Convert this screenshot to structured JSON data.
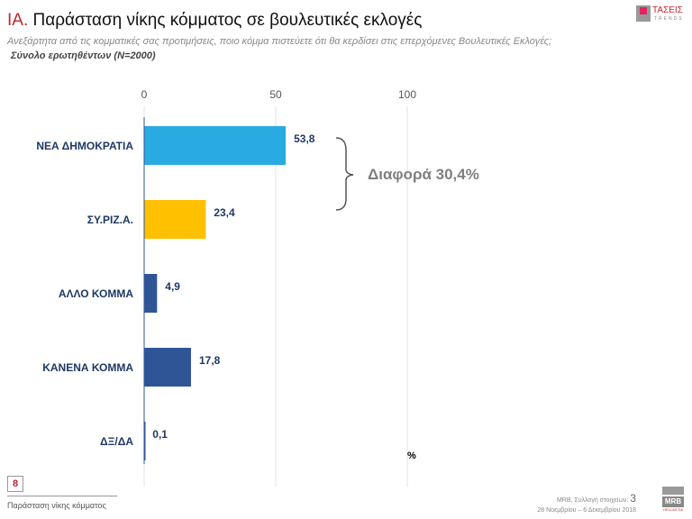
{
  "header": {
    "title_prefix": "ΙΑ.",
    "title": " Παράσταση νίκης κόμματος σε βουλευτικές εκλογές",
    "question": "Ανεξάρτητα από τις κομματικές σας προτιμήσεις, ποιο κόμμα πιστεύετε ότι θα κερδίσει στις επερχόμενες Βουλευτικές Εκλογές;",
    "sample": "Σύνολο ερωτηθέντων (N=2000)",
    "logo_text": "ΤΑΣΕΙΣ",
    "logo_sub": "TRENDS"
  },
  "chart_data": {
    "type": "bar",
    "orientation": "horizontal",
    "categories": [
      "ΝΕΑ ΔΗΜΟΚΡΑΤΙΑ",
      "ΣΥ.ΡΙΖ.Α.",
      "ΑΛΛΟ ΚΟΜΜΑ",
      "ΚΑΝΕΝΑ ΚΟΜΜΑ",
      "ΔΞ/ΔΑ"
    ],
    "values": [
      53.8,
      23.4,
      4.9,
      17.8,
      0.1
    ],
    "value_labels": [
      "53,8",
      "23,4",
      "4,9",
      "17,8",
      "0,1"
    ],
    "colors": [
      "#29abe2",
      "#ffc000",
      "#2f5597",
      "#2f5597",
      "#2f5597"
    ],
    "xlim": [
      0,
      100
    ],
    "xticks": [
      "0",
      "50",
      "100"
    ],
    "unit": "%",
    "annotation": "Διαφορά 30,4%",
    "grid": true
  },
  "footer": {
    "slide_badge": "8",
    "section": "Παράσταση νίκης κόμματος",
    "source": "MRB, Συλλογή στοιχείων:",
    "dates": "28 Νοεμβρίου – 6 Δεκεμβρίου 2018",
    "page": "3",
    "logo": "MRB HELLAS SA"
  }
}
